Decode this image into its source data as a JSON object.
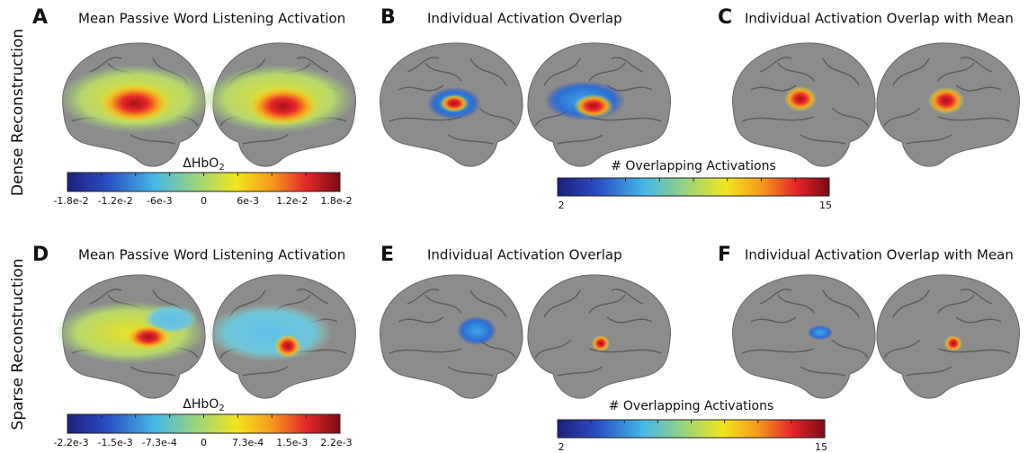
{
  "rows": [
    {
      "label": "Dense Reconstruction",
      "panels": [
        {
          "letter": "A",
          "title": "Mean Passive Word Listening Activation"
        },
        {
          "letter": "B",
          "title": "Individual Activation Overlap"
        },
        {
          "letter": "C",
          "title": "Individual Activation Overlap with Mean"
        }
      ],
      "colorbars": [
        {
          "label": {
            "text": "ΔHbO",
            "subscript": "2"
          },
          "ticks": [
            "-1.8e-2",
            "-1.2e-2",
            "-6e-3",
            "0",
            "6e-3",
            "1.2e-2",
            "1.8e-2"
          ]
        },
        {
          "label": {
            "text": "# Overlapping Activations"
          },
          "ticks": [
            "2",
            "15"
          ]
        }
      ]
    },
    {
      "label": "Sparse Reconstruction",
      "panels": [
        {
          "letter": "D",
          "title": "Mean Passive Word Listening Activation"
        },
        {
          "letter": "E",
          "title": "Individual Activation Overlap"
        },
        {
          "letter": "F",
          "title": "Individual Activation Overlap with Mean"
        }
      ],
      "colorbars": [
        {
          "label": {
            "text": "ΔHbO",
            "subscript": "2"
          },
          "ticks": [
            "-2.2e-3",
            "-1.5e-3",
            "-7.3e-4",
            "0",
            "7.3e-4",
            "1.5e-3",
            "2.2e-3"
          ]
        },
        {
          "label": {
            "text": "# Overlapping Activations"
          },
          "ticks": [
            "2",
            "15"
          ]
        }
      ]
    }
  ]
}
